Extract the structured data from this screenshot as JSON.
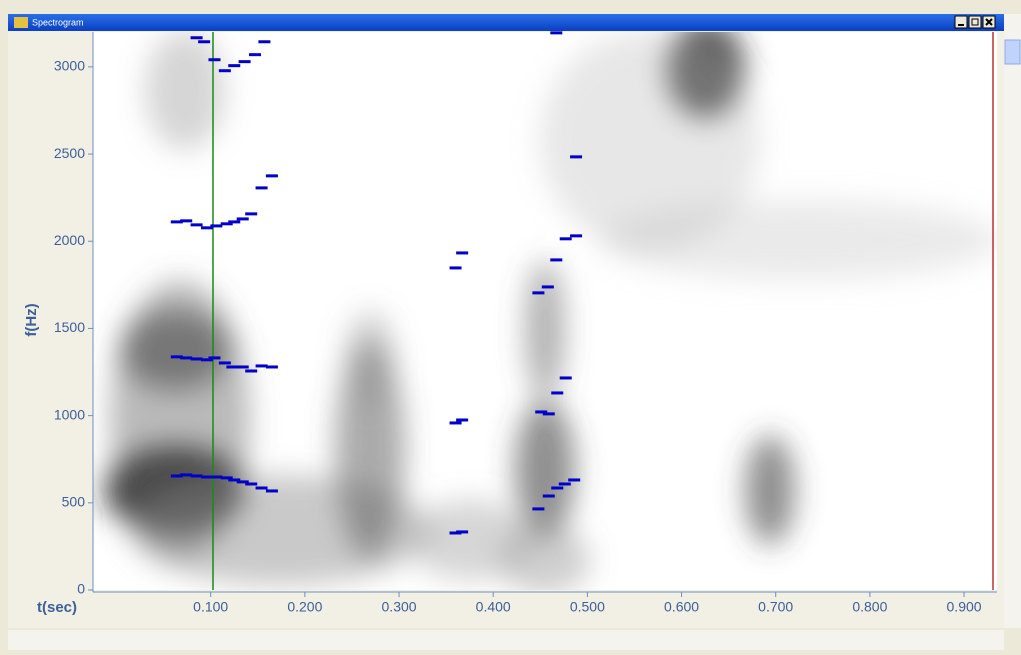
{
  "chart_data": {
    "type": "scatter",
    "title": "Spectrogram",
    "x_label": "t(sec)",
    "y_label": "f(Hz)",
    "color": "#0000c8",
    "x": [
      0.064,
      0.074,
      0.085,
      0.096,
      0.106,
      0.117,
      0.125,
      0.134,
      0.143,
      0.154,
      0.165,
      0.064,
      0.074,
      0.085,
      0.096,
      0.104,
      0.115,
      0.123,
      0.134,
      0.143,
      0.154,
      0.165,
      0.064,
      0.074,
      0.085,
      0.096,
      0.106,
      0.117,
      0.125,
      0.134,
      0.143,
      0.154,
      0.165,
      0.085,
      0.093,
      0.104,
      0.115,
      0.125,
      0.136,
      0.147,
      0.157,
      0.36,
      0.367,
      0.36,
      0.367,
      0.36,
      0.367,
      0.448,
      0.459,
      0.468,
      0.476,
      0.486,
      0.451,
      0.459,
      0.468,
      0.477,
      0.448,
      0.458,
      0.467,
      0.477,
      0.488,
      0.488,
      0.467
    ],
    "values": [
      654,
      660,
      654,
      648,
      648,
      643,
      631,
      620,
      608,
      585,
      568,
      1337,
      1331,
      1325,
      1320,
      1331,
      1302,
      1279,
      1279,
      1256,
      1285,
      1279,
      2111,
      2117,
      2094,
      2077,
      2088,
      2100,
      2111,
      2128,
      2157,
      2306,
      2375,
      3167,
      3144,
      3041,
      2978,
      3007,
      3030,
      3070,
      3144,
      327,
      333,
      958,
      975,
      1847,
      1933,
      465,
      539,
      585,
      608,
      631,
      1021,
      1010,
      1130,
      1216,
      1704,
      1738,
      1893,
      2014,
      2031,
      2484,
      3195
    ],
    "xlim": [
      -0.025,
      0.935
    ],
    "ylim": [
      0,
      3200
    ],
    "xticks": [
      {
        "value": 0.1,
        "label": "0.100"
      },
      {
        "value": 0.2,
        "label": "0.200"
      },
      {
        "value": 0.3,
        "label": "0.300"
      },
      {
        "value": 0.4,
        "label": "0.400"
      },
      {
        "value": 0.5,
        "label": "0.500"
      },
      {
        "value": 0.6,
        "label": "0.600"
      },
      {
        "value": 0.7,
        "label": "0.700"
      },
      {
        "value": 0.8,
        "label": "0.800"
      },
      {
        "value": 0.9,
        "label": "0.900"
      }
    ],
    "yticks": [
      0,
      500,
      1000,
      1500,
      2000,
      2500,
      3000
    ]
  }
}
